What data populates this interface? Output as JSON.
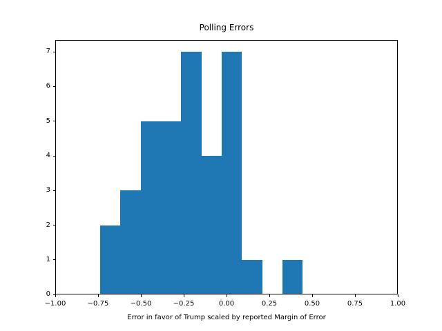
{
  "figure": {
    "background": "#ffffff",
    "text_color": "#000000"
  },
  "chart_data": {
    "type": "bar",
    "subtype": "histogram",
    "title": "Polling Errors",
    "xlabel": "Error in favor of Trump scaled by reported Margin of Error",
    "ylabel": "",
    "bin_edges": [
      -0.738,
      -0.62,
      -0.501,
      -0.383,
      -0.265,
      -0.147,
      -0.028,
      0.09,
      0.208,
      0.327,
      0.445
    ],
    "counts": [
      2,
      3,
      5,
      5,
      7,
      4,
      7,
      1,
      0,
      1
    ],
    "xlim": [
      -1.0,
      1.0
    ],
    "ylim": [
      0,
      7.35
    ],
    "xticks": [
      -1.0,
      -0.75,
      -0.5,
      -0.25,
      0.0,
      0.25,
      0.5,
      0.75,
      1.0
    ],
    "xtick_labels": [
      "−1.00",
      "−0.75",
      "−0.50",
      "−0.25",
      "0.00",
      "0.25",
      "0.50",
      "0.75",
      "1.00"
    ],
    "yticks": [
      0,
      1,
      2,
      3,
      4,
      5,
      6,
      7
    ],
    "ytick_labels": [
      "0",
      "1",
      "2",
      "3",
      "4",
      "5",
      "6",
      "7"
    ],
    "bar_color": "#1f77b4",
    "axis_color": "#000000",
    "grid": false,
    "legend": null
  }
}
